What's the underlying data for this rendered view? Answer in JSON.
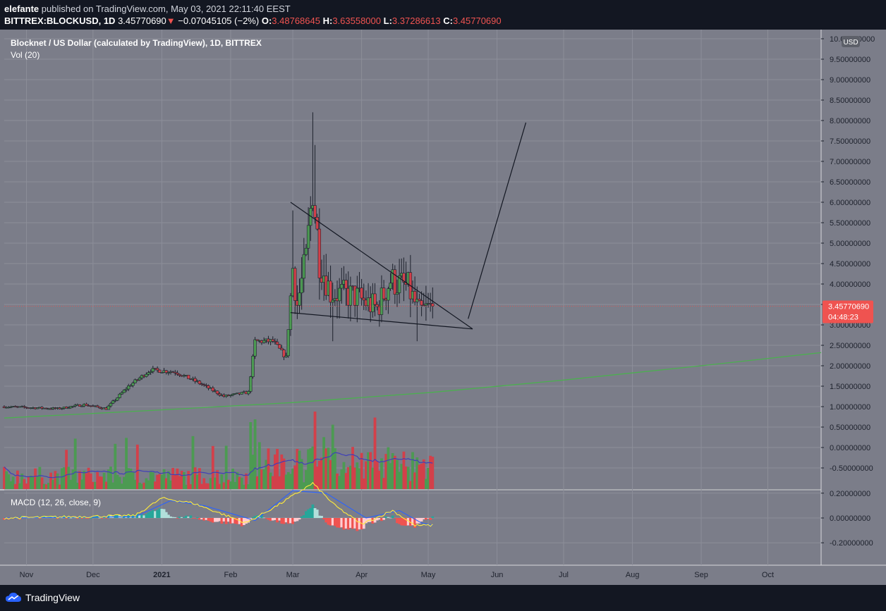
{
  "header": {
    "author": "elefante",
    "published": "published on TradingView.com, May 03, 2021 22:11:40 EEST",
    "symbol": "BITTREX:BLOCKUSD, 1D",
    "last": "3.45770690",
    "change_arrow": "▼",
    "change": "−0.07045105 (−2%)",
    "o_label": "O:",
    "o_value": "3.48768645",
    "h_label": "H:",
    "h_value": "3.63558000",
    "l_label": "L:",
    "l_value": "3.37286613",
    "c_label": "C:",
    "c_value": "3.45770690"
  },
  "legend": {
    "title": "Blocknet / US Dollar (calculated by TradingView), 1D, BITTREX",
    "volume": "Vol (20)",
    "macd": "MACD (12, 26, close, 9)"
  },
  "price_axis": {
    "currency": "USD",
    "labels": [
      "10.00000000",
      "9.50000000",
      "9.00000000",
      "8.50000000",
      "8.00000000",
      "7.50000000",
      "7.00000000",
      "6.50000000",
      "6.00000000",
      "5.50000000",
      "5.00000000",
      "4.50000000",
      "4.00000000",
      "3.50000000",
      "3.00000000",
      "2.50000000",
      "2.00000000",
      "1.50000000",
      "1.00000000",
      "0.50000000",
      "0.00000000",
      "-0.50000000"
    ],
    "last_price_label": "3.45770690",
    "countdown_label": "04:48:23"
  },
  "macd_axis": {
    "labels": [
      "0.20000000",
      "0.00000000",
      "-0.20000000"
    ]
  },
  "time_axis": {
    "labels": [
      "Nov",
      "Dec",
      "2021",
      "Feb",
      "Mar",
      "Apr",
      "May",
      "Jun",
      "Jul",
      "Aug",
      "Sep",
      "Oct"
    ]
  },
  "footer": {
    "brand": "TradingView"
  },
  "colors": {
    "background": "#7b7d89",
    "up": "#4c9a52",
    "down": "#d2404a",
    "ma": "#4caf50",
    "vol_ma": "#3f3fb8",
    "macd_line": "#2962ff",
    "signal_line": "#ffeb3b",
    "last_price": "#ef5350"
  },
  "chart_data": {
    "type": "candlestick",
    "title": "Blocknet / US Dollar (calculated by TradingView), 1D, BITTREX",
    "x_range": [
      "2020-10-22",
      "2021-10-25"
    ],
    "ylim": [
      -0.5,
      10
    ],
    "last_price": 3.4577069,
    "ohlc_anchors": [
      {
        "date": "2020-10-22",
        "close": 1.0
      },
      {
        "date": "2020-11-15",
        "close": 0.95
      },
      {
        "date": "2020-11-27",
        "close": 1.05
      },
      {
        "date": "2020-12-07",
        "close": 0.95
      },
      {
        "date": "2020-12-17",
        "close": 1.5
      },
      {
        "date": "2020-12-27",
        "close": 1.9
      },
      {
        "date": "2021-01-07",
        "close": 1.85
      },
      {
        "date": "2021-01-17",
        "close": 1.6
      },
      {
        "date": "2021-01-29",
        "close": 1.25
      },
      {
        "date": "2021-02-09",
        "close": 1.35
      },
      {
        "date": "2021-02-12",
        "close": 2.6
      },
      {
        "date": "2021-02-20",
        "close": 2.6
      },
      {
        "date": "2021-02-26",
        "close": 2.2
      },
      {
        "date": "2021-03-01",
        "close": 4.4
      },
      {
        "date": "2021-03-03",
        "close": 3.5
      },
      {
        "date": "2021-03-07",
        "close": 4.6
      },
      {
        "date": "2021-03-10",
        "close": 6.4
      },
      {
        "date": "2021-03-13",
        "close": 4.6
      },
      {
        "date": "2021-03-18",
        "close": 3.8
      },
      {
        "date": "2021-03-29",
        "close": 3.7
      },
      {
        "date": "2021-04-08",
        "close": 3.4
      },
      {
        "date": "2021-04-14",
        "close": 4.1
      },
      {
        "date": "2021-04-22",
        "close": 3.9
      },
      {
        "date": "2021-04-27",
        "close": 3.3
      },
      {
        "date": "2021-05-03",
        "close": 3.46
      }
    ],
    "volume_ma_period": 20,
    "moving_average": [
      {
        "date": "2020-10-22",
        "value": 0.72
      },
      {
        "date": "2021-01-01",
        "value": 0.92
      },
      {
        "date": "2021-03-01",
        "value": 1.1
      },
      {
        "date": "2021-05-03",
        "value": 1.35
      },
      {
        "date": "2021-07-01",
        "value": 1.65
      },
      {
        "date": "2021-09-01",
        "value": 2.0
      },
      {
        "date": "2021-10-25",
        "value": 2.32
      }
    ],
    "trendlines": [
      {
        "from": {
          "date": "2021-02-28",
          "price": 6.0
        },
        "to": {
          "date": "2021-05-21",
          "price": 2.9
        }
      },
      {
        "from": {
          "date": "2021-02-28",
          "price": 3.3
        },
        "to": {
          "date": "2021-05-21",
          "price": 2.9
        }
      },
      {
        "from": {
          "date": "2021-05-19",
          "price": 3.15
        },
        "to": {
          "date": "2021-06-14",
          "price": 7.95
        }
      }
    ],
    "macd": {
      "params": "12, 26, close, 9",
      "ylim": [
        -0.2,
        0.2
      ],
      "macd_line": [
        {
          "date": "2020-10-22",
          "value": 0.0
        },
        {
          "date": "2020-12-20",
          "value": 0.02
        },
        {
          "date": "2021-01-01",
          "value": 0.16
        },
        {
          "date": "2021-01-15",
          "value": 0.12
        },
        {
          "date": "2021-02-08",
          "value": -0.04
        },
        {
          "date": "2021-02-22",
          "value": 0.1
        },
        {
          "date": "2021-03-10",
          "value": 0.28
        },
        {
          "date": "2021-03-20",
          "value": 0.1
        },
        {
          "date": "2021-04-01",
          "value": -0.05
        },
        {
          "date": "2021-04-15",
          "value": 0.06
        },
        {
          "date": "2021-04-25",
          "value": -0.06
        },
        {
          "date": "2021-05-03",
          "value": -0.06
        }
      ],
      "signal_line": [
        {
          "date": "2020-10-22",
          "value": 0.0
        },
        {
          "date": "2020-12-20",
          "value": 0.01
        },
        {
          "date": "2021-01-05",
          "value": 0.14
        },
        {
          "date": "2021-01-20",
          "value": 0.1
        },
        {
          "date": "2021-02-12",
          "value": -0.02
        },
        {
          "date": "2021-03-01",
          "value": 0.22
        },
        {
          "date": "2021-03-16",
          "value": 0.2
        },
        {
          "date": "2021-04-03",
          "value": 0.0
        },
        {
          "date": "2021-04-18",
          "value": 0.06
        },
        {
          "date": "2021-04-28",
          "value": -0.04
        },
        {
          "date": "2021-05-03",
          "value": -0.06
        }
      ]
    }
  }
}
